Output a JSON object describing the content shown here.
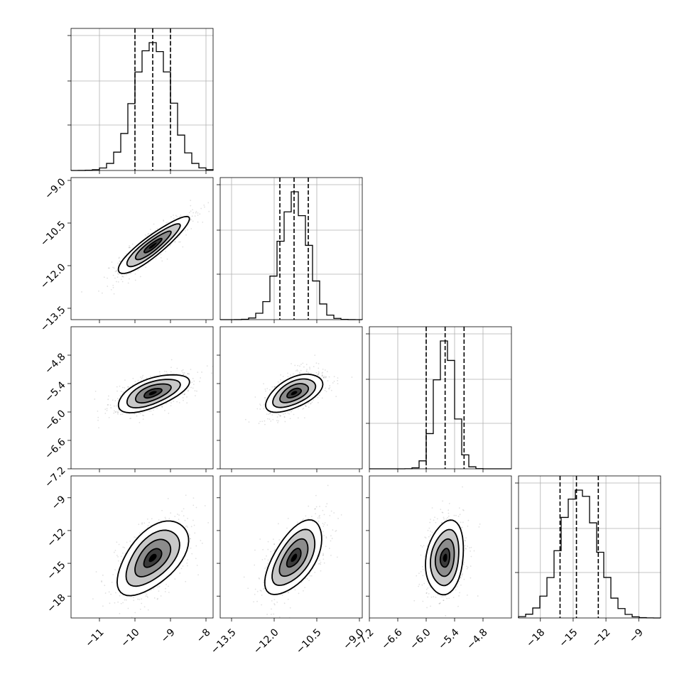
{
  "colors": {
    "ink": "#000000",
    "grid": "#b0b0b0",
    "background": "#ffffff"
  },
  "chart_data": {
    "type": "corner",
    "params": [
      {
        "name": "",
        "mean": -9.5,
        "std": 0.5,
        "range": [
          -11.8,
          -7.8
        ],
        "quantiles": [
          -10.0,
          -9.5,
          -9.0
        ],
        "ticks": [
          -11,
          -10,
          -9,
          -8
        ],
        "ticklabels": [
          "−11",
          "−10",
          "−9",
          "−8"
        ]
      },
      {
        "name": "",
        "mean": -11.3,
        "std": 0.5,
        "range": [
          -13.9,
          -8.9
        ],
        "quantiles": [
          -11.8,
          -11.3,
          -10.8
        ],
        "ticks": [
          -13.5,
          -12.0,
          -10.5,
          -9.0
        ],
        "ticklabels": [
          "−13.5",
          "−12.0",
          "−10.5",
          "−9.0"
        ]
      },
      {
        "name": "",
        "mean": -5.6,
        "std": 0.2,
        "range": [
          -7.2,
          -4.2
        ],
        "quantiles": [
          -6.0,
          -5.6,
          -5.2
        ],
        "ticks": [
          -7.2,
          -6.6,
          -6.0,
          -5.4,
          -4.8
        ],
        "ticklabels": [
          "−7.2",
          "−6.6",
          "−6.0",
          "−5.4",
          "−4.8"
        ]
      },
      {
        "name": "",
        "mean": -14.5,
        "std": 1.7,
        "range": [
          -20.0,
          -7.0
        ],
        "quantiles": [
          -16.2,
          -14.7,
          -12.7
        ],
        "ticks": [
          -18,
          -15,
          -12,
          -9
        ],
        "ticklabels": [
          "−18",
          "−15",
          "−12",
          "−9"
        ]
      }
    ],
    "correlations": [
      [
        1,
        0.9,
        0.6,
        0.55
      ],
      [
        0.9,
        1,
        0.55,
        0.6
      ],
      [
        0.6,
        0.55,
        1,
        0.2
      ],
      [
        0.55,
        0.6,
        0.2,
        1
      ]
    ],
    "grid": true,
    "contour_levels_sigma": [
      0.5,
      1.0,
      1.5,
      2.0
    ]
  }
}
